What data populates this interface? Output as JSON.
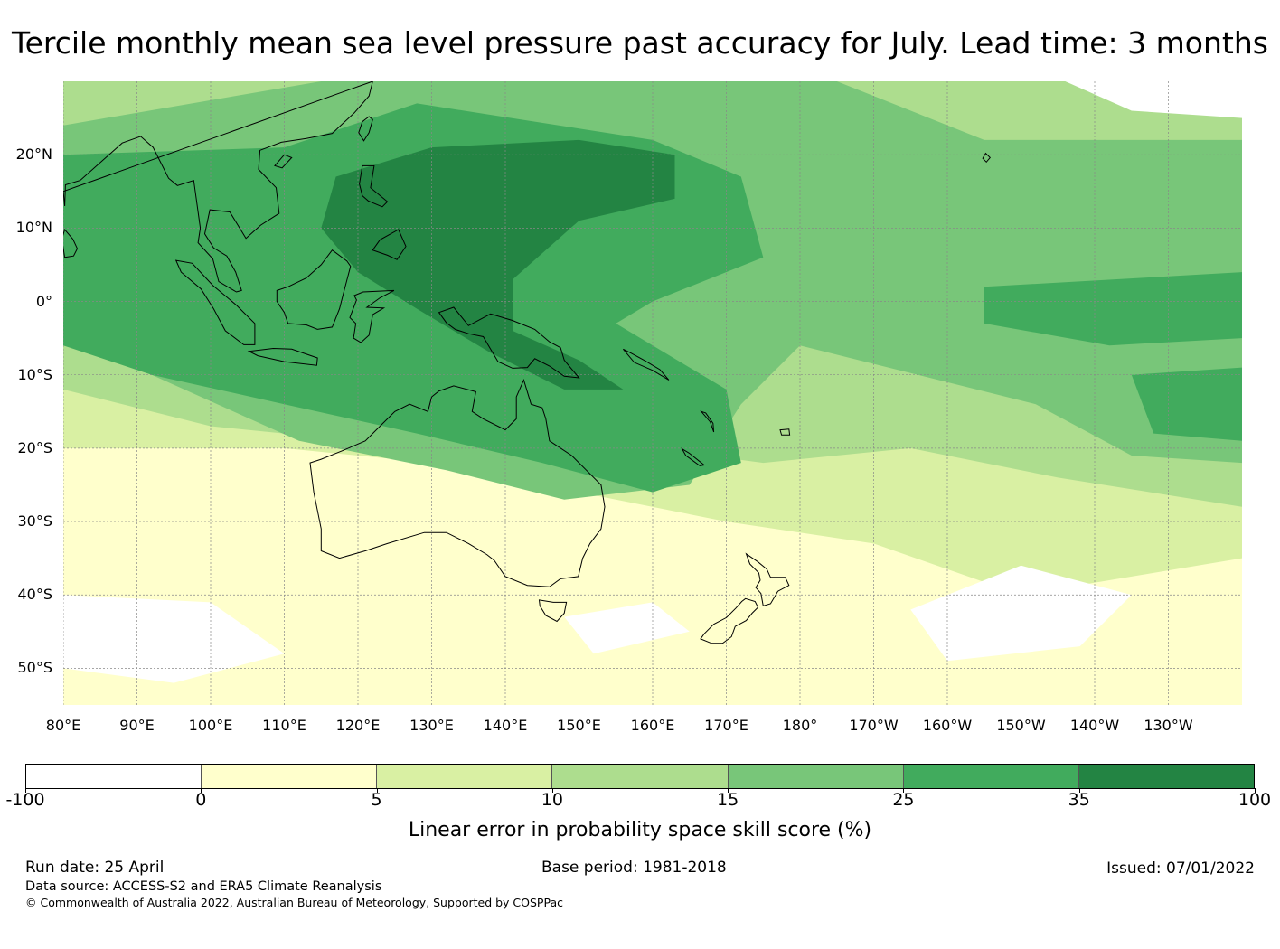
{
  "title": "Tercile monthly mean sea level pressure past accuracy for July. Lead time: 3 months",
  "map": {
    "lon_range": [
      80,
      240
    ],
    "lat_range": [
      -55,
      30
    ],
    "lat_labels": [
      {
        "lat": 20,
        "text": "20°N"
      },
      {
        "lat": 10,
        "text": "10°N"
      },
      {
        "lat": 0,
        "text": "0°"
      },
      {
        "lat": -10,
        "text": "10°S"
      },
      {
        "lat": -20,
        "text": "20°S"
      },
      {
        "lat": -30,
        "text": "30°S"
      },
      {
        "lat": -40,
        "text": "40°S"
      },
      {
        "lat": -50,
        "text": "50°S"
      }
    ],
    "lon_labels": [
      {
        "lon": 80,
        "text": "80°E"
      },
      {
        "lon": 90,
        "text": "90°E"
      },
      {
        "lon": 100,
        "text": "100°E"
      },
      {
        "lon": 110,
        "text": "110°E"
      },
      {
        "lon": 120,
        "text": "120°E"
      },
      {
        "lon": 130,
        "text": "130°E"
      },
      {
        "lon": 140,
        "text": "140°E"
      },
      {
        "lon": 150,
        "text": "150°E"
      },
      {
        "lon": 160,
        "text": "160°E"
      },
      {
        "lon": 170,
        "text": "170°E"
      },
      {
        "lon": 180,
        "text": "180°"
      },
      {
        "lon": 190,
        "text": "170°W"
      },
      {
        "lon": 200,
        "text": "160°W"
      },
      {
        "lon": 210,
        "text": "150°W"
      },
      {
        "lon": 220,
        "text": "140°W"
      },
      {
        "lon": 230,
        "text": "130°W"
      }
    ]
  },
  "colorbar": {
    "ticks": [
      "-100",
      "0",
      "5",
      "10",
      "15",
      "25",
      "35",
      "100"
    ],
    "colors": [
      "#ffffff",
      "#ffffcc",
      "#d9f0a3",
      "#addd8e",
      "#78c679",
      "#41ab5d",
      "#238443"
    ],
    "label": "Linear error in probability space skill score (%)"
  },
  "footer": {
    "run_date": "Run date: 25 April",
    "base_period": "Base period: 1981-2018",
    "issued": "Issued: 07/01/2022",
    "data_source": "Data source: ACCESS-S2 and ERA5 Climate Reanalysis",
    "copyright": "© Commonwealth of Australia 2022, Australian Bureau of Meteorology, Supported by COSPPac"
  }
}
